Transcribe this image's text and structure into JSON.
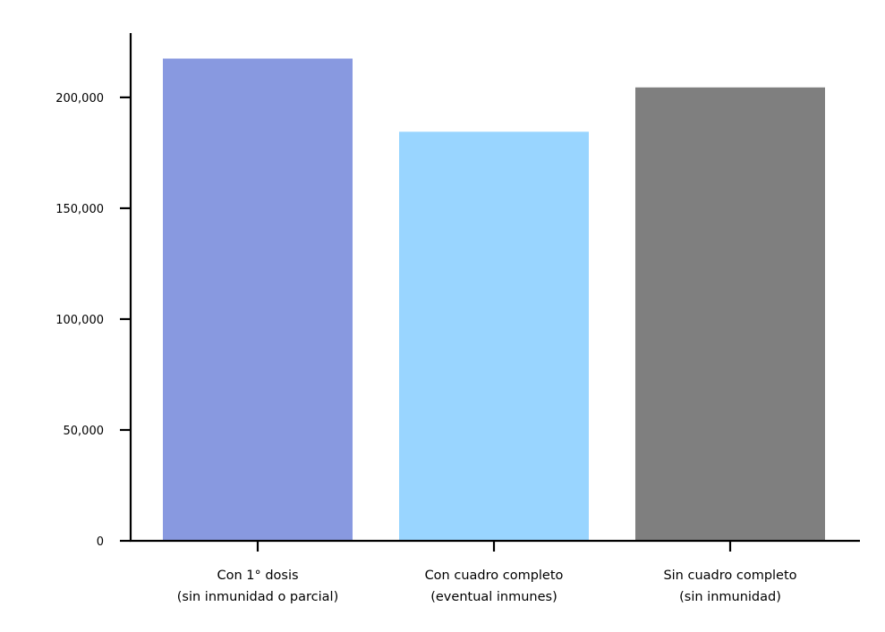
{
  "chart_data": {
    "type": "bar",
    "title": "",
    "xlabel": "",
    "ylabel": "",
    "categories": [
      [
        "Con 1° dosis",
        "(sin inmunidad o parcial)"
      ],
      [
        "Con cuadro completo",
        "(eventual inmunes)"
      ],
      [
        "Sin cuadro completo",
        "(sin inmunidad)"
      ]
    ],
    "values": [
      217500,
      184500,
      204500
    ],
    "colors": [
      "#8899e0",
      "#99d5ff",
      "#7f7f7f"
    ],
    "ylim": [
      0,
      229000
    ],
    "yticks": [
      0,
      50000,
      100000,
      150000,
      200000
    ],
    "ytick_labels": [
      "0",
      "50,000",
      "100,000",
      "150,000",
      "200,000"
    ],
    "grid": false,
    "legend": "none"
  }
}
